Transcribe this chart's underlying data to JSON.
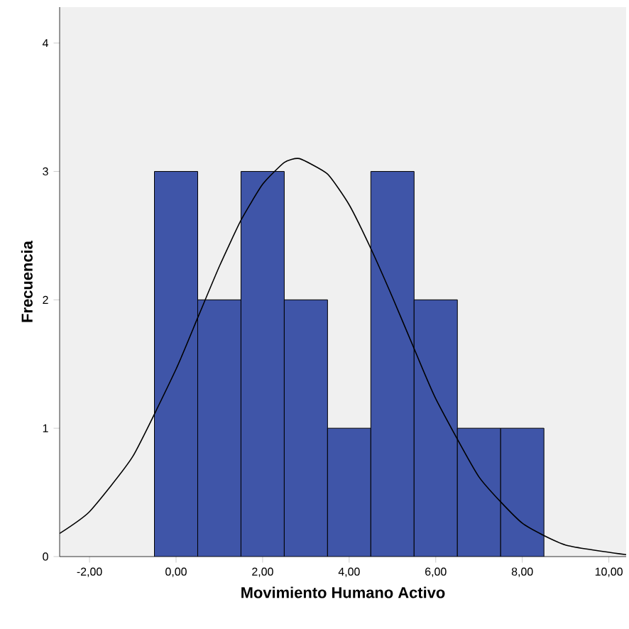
{
  "chart_data": {
    "type": "histogram",
    "xlabel": "Movimiento Humano Activo",
    "ylabel": "Frecuencia",
    "bins": [
      -0.5,
      0.5,
      1.5,
      2.5,
      3.5,
      4.5,
      5.5,
      6.5,
      7.5,
      8.5
    ],
    "values": [
      3,
      2,
      3,
      2,
      1,
      3,
      2,
      1,
      1
    ],
    "color": "#3f55a8",
    "xlim": [
      -2.69,
      10.4
    ],
    "ylim": [
      0,
      4.28
    ],
    "xticks": [
      {
        "value": -2,
        "label": "-2,00"
      },
      {
        "value": 0,
        "label": "0,00"
      },
      {
        "value": 2,
        "label": "2,00"
      },
      {
        "value": 4,
        "label": "4,00"
      },
      {
        "value": 6,
        "label": "6,00"
      },
      {
        "value": 8,
        "label": "8,00"
      },
      {
        "value": 10,
        "label": "10,00"
      }
    ],
    "yticks": [
      0,
      1,
      2,
      3,
      4
    ],
    "grid": false,
    "series": [
      {
        "type": "line",
        "color": "#000000",
        "x": [
          -2.69,
          -2,
          -1,
          0,
          0.5,
          1,
          1.5,
          2,
          2.5,
          2.85,
          3.5,
          4,
          4.5,
          5,
          5.5,
          6,
          7,
          8,
          9,
          10.4
        ],
        "values": [
          0.18,
          0.35,
          0.78,
          1.46,
          1.86,
          2.26,
          2.62,
          2.9,
          3.07,
          3.1,
          2.98,
          2.74,
          2.4,
          2.02,
          1.62,
          1.23,
          0.62,
          0.26,
          0.09,
          0.015
        ]
      }
    ]
  }
}
